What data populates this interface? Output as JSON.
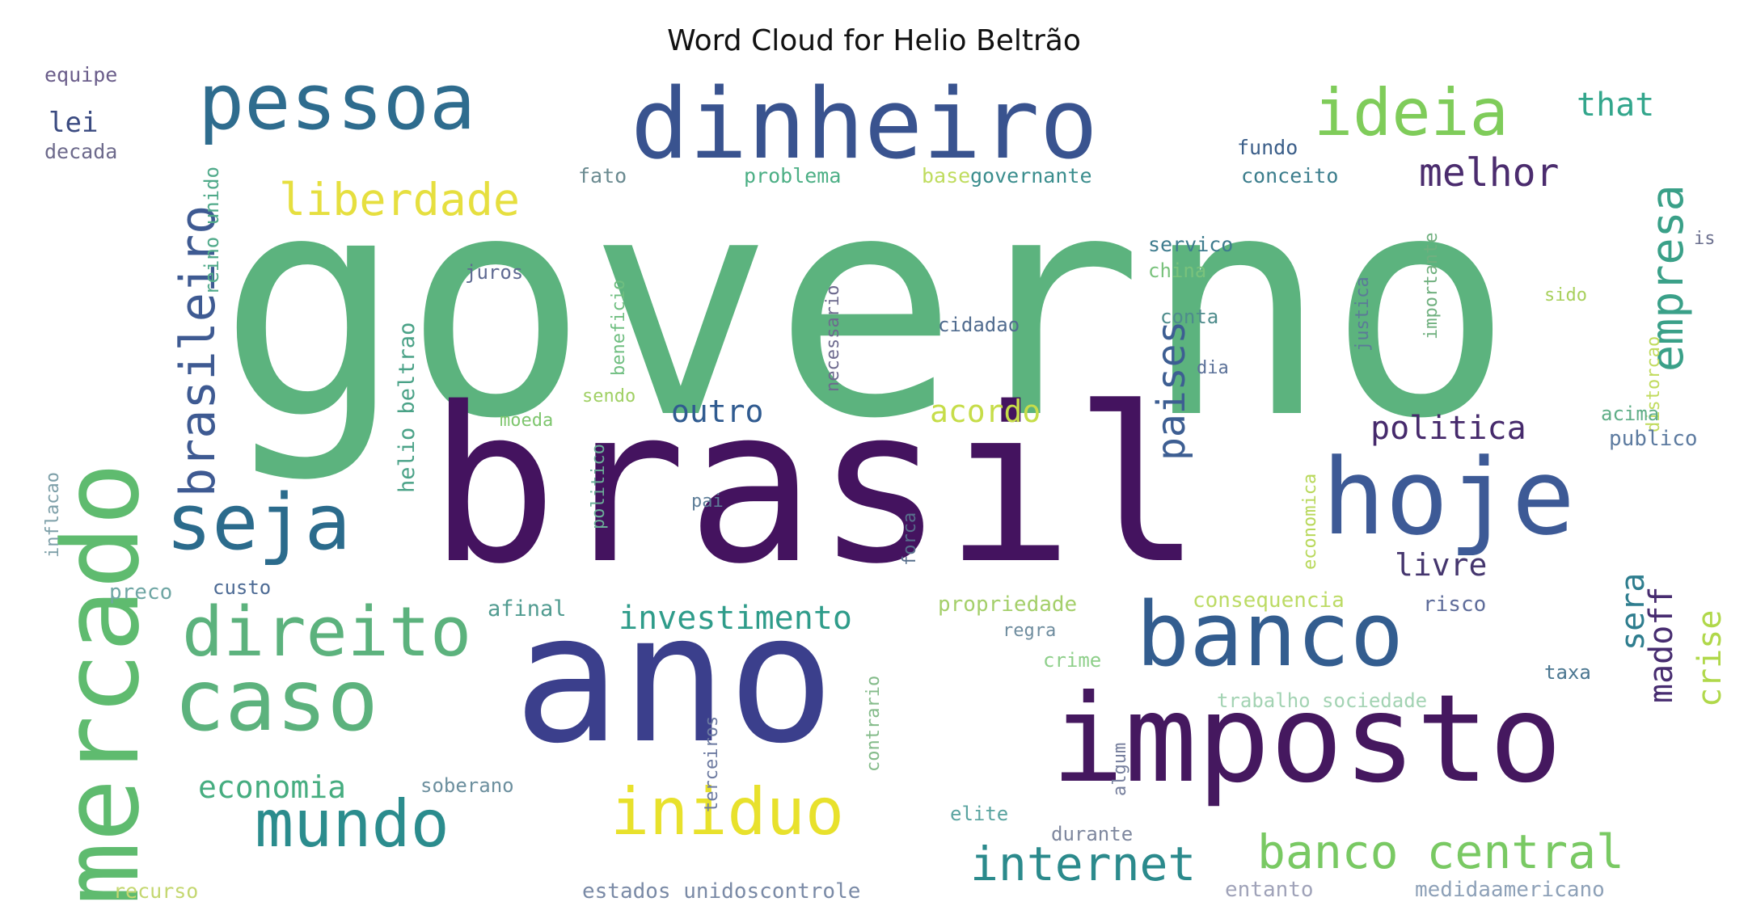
{
  "title": "Word Cloud for Helio Beltrão",
  "colors": [
    "#440154",
    "#482878",
    "#3e4989",
    "#31688e",
    "#26828e",
    "#1f9e89",
    "#35b779",
    "#6ece58",
    "#b5de2b",
    "#fde725"
  ],
  "words": [
    {
      "text": "governo",
      "weight": 100,
      "color": "#5cb37e"
    },
    {
      "text": "brasil",
      "weight": 72,
      "color": "#44135f"
    },
    {
      "text": "ano",
      "weight": 60,
      "color": "#3b3f8c"
    },
    {
      "text": "imposto",
      "weight": 40,
      "color": "#45185f"
    },
    {
      "text": "hoje",
      "weight": 36,
      "color": "#3d5a96"
    },
    {
      "text": "mercado",
      "weight": 36,
      "color": "#5fbb6f"
    },
    {
      "text": "dinheiro",
      "weight": 33,
      "color": "#39538f"
    },
    {
      "text": "banco",
      "weight": 30,
      "color": "#335d8f"
    },
    {
      "text": "caso",
      "weight": 28,
      "color": "#5cb27d"
    },
    {
      "text": "pessoa",
      "weight": 25,
      "color": "#2e6c8e"
    },
    {
      "text": "seja",
      "weight": 25,
      "color": "#2b6b8c"
    },
    {
      "text": "direito",
      "weight": 23,
      "color": "#5cb27d"
    },
    {
      "text": "mundo",
      "weight": 22,
      "color": "#2b8c8d"
    },
    {
      "text": "iniduo",
      "weight": 22,
      "color": "#e8e12c"
    },
    {
      "text": "ideia",
      "weight": 21,
      "color": "#7fcc5a"
    },
    {
      "text": "brasileiro",
      "weight": 16,
      "color": "#3e5a92"
    },
    {
      "text": "liberdade",
      "weight": 14,
      "color": "#e6df3f"
    },
    {
      "text": "empresa",
      "weight": 15,
      "color": "#3aa088"
    },
    {
      "text": "internet",
      "weight": 15,
      "color": "#2b8a8c"
    },
    {
      "text": "banco central",
      "weight": 15,
      "color": "#79c963"
    },
    {
      "text": "melhor",
      "weight": 12,
      "color": "#4b2c6e"
    },
    {
      "text": "paises",
      "weight": 12,
      "color": "#3d5e92"
    },
    {
      "text": "economia",
      "weight": 10,
      "color": "#46ad80"
    },
    {
      "text": "investimento",
      "weight": 10,
      "color": "#2f9c8a"
    },
    {
      "text": "politica",
      "weight": 10,
      "color": "#462a6c"
    },
    {
      "text": "outro",
      "weight": 9,
      "color": "#305b90"
    },
    {
      "text": "acordo",
      "weight": 9,
      "color": "#c6dd49"
    },
    {
      "text": "livre",
      "weight": 9,
      "color": "#45366e"
    },
    {
      "text": "sera",
      "weight": 9,
      "color": "#2e7d8e"
    },
    {
      "text": "madoff",
      "weight": 9,
      "color": "#472c70"
    },
    {
      "text": "crise",
      "weight": 9,
      "color": "#b0d84a"
    },
    {
      "text": "that",
      "weight": 9,
      "color": "#33a68c"
    },
    {
      "text": "lei",
      "weight": 8,
      "color": "#3a4a80"
    },
    {
      "text": "helio beltrao",
      "weight": 7,
      "color": "#4aa287"
    },
    {
      "text": "reino unido",
      "weight": 6,
      "color": "#50aa8a"
    },
    {
      "text": "fundo",
      "weight": 6,
      "color": "#3b5e89"
    },
    {
      "text": "conceito",
      "weight": 6,
      "color": "#3b7d8c"
    },
    {
      "text": "governante",
      "weight": 6,
      "color": "#3a8d8d"
    },
    {
      "text": "problema",
      "weight": 6,
      "color": "#4caf85"
    },
    {
      "text": "base",
      "weight": 6,
      "color": "#bfdc5e"
    },
    {
      "text": "fato",
      "weight": 6,
      "color": "#6a8a90"
    },
    {
      "text": "decada",
      "weight": 6,
      "color": "#6d6a8c"
    },
    {
      "text": "equipe",
      "weight": 6,
      "color": "#6a5d8a"
    },
    {
      "text": "servico",
      "weight": 6,
      "color": "#3e7c8e"
    },
    {
      "text": "china",
      "weight": 5,
      "color": "#79c27c"
    },
    {
      "text": "juros",
      "weight": 5,
      "color": "#5f6a92"
    },
    {
      "text": "beneficio",
      "weight": 5,
      "color": "#6fbe80"
    },
    {
      "text": "necessario",
      "weight": 5,
      "color": "#6d6a8e"
    },
    {
      "text": "justica",
      "weight": 5,
      "color": "#5b7a98"
    },
    {
      "text": "importante",
      "weight": 5,
      "color": "#70b07f"
    },
    {
      "text": "distorcao",
      "weight": 5,
      "color": "#c1db5e"
    },
    {
      "text": "cidadao",
      "weight": 5,
      "color": "#516c8f"
    },
    {
      "text": "conta",
      "weight": 5,
      "color": "#4e8c8c"
    },
    {
      "text": "sido",
      "weight": 5,
      "color": "#a8d05c"
    },
    {
      "text": "dia",
      "weight": 5,
      "color": "#5b7198"
    },
    {
      "text": "sendo",
      "weight": 6,
      "color": "#a0d064"
    },
    {
      "text": "moeda",
      "weight": 6,
      "color": "#7ec66e"
    },
    {
      "text": "publico",
      "weight": 6,
      "color": "#5d7ba0"
    },
    {
      "text": "acima",
      "weight": 6,
      "color": "#5fae87"
    },
    {
      "text": "economica",
      "weight": 5,
      "color": "#b8d85a"
    },
    {
      "text": "pai",
      "weight": 5,
      "color": "#5e7e98"
    },
    {
      "text": "forca",
      "weight": 5,
      "color": "#586f8c"
    },
    {
      "text": "politico",
      "weight": 5,
      "color": "#6cae98"
    },
    {
      "text": "custo",
      "weight": 6,
      "color": "#4c6a94"
    },
    {
      "text": "preco",
      "weight": 6,
      "color": "#6fa6a4"
    },
    {
      "text": "afinal",
      "weight": 6,
      "color": "#529c91"
    },
    {
      "text": "propriedade",
      "weight": 6,
      "color": "#a4cf6a"
    },
    {
      "text": "regra",
      "weight": 5,
      "color": "#6e8c9e"
    },
    {
      "text": "consequencia",
      "weight": 6,
      "color": "#bcdb65"
    },
    {
      "text": "risco",
      "weight": 6,
      "color": "#5e6c9a"
    },
    {
      "text": "taxa",
      "weight": 5,
      "color": "#4a7690"
    },
    {
      "text": "crime",
      "weight": 5,
      "color": "#8ecf8a"
    },
    {
      "text": "trabalho sociedade",
      "weight": 6,
      "color": "#a3d3b3"
    },
    {
      "text": "contrario",
      "weight": 5,
      "color": "#84bb8a"
    },
    {
      "text": "terceiros",
      "weight": 5,
      "color": "#6c7aa0"
    },
    {
      "text": "algum",
      "weight": 5,
      "color": "#757e9c"
    },
    {
      "text": "soberano",
      "weight": 5,
      "color": "#6c8f9e"
    },
    {
      "text": "elite",
      "weight": 5,
      "color": "#5aa4a0"
    },
    {
      "text": "durante",
      "weight": 5,
      "color": "#7e879e"
    },
    {
      "text": "recurso",
      "weight": 6,
      "color": "#c4d770"
    },
    {
      "text": "estados unidoscontrole",
      "weight": 6,
      "color": "#7a8aa6"
    },
    {
      "text": "entanto",
      "weight": 6,
      "color": "#a0a3b9"
    },
    {
      "text": "medidaamericano",
      "weight": 6,
      "color": "#8ea1b8"
    },
    {
      "text": "inflacao",
      "weight": 5,
      "color": "#7d9fa8"
    },
    {
      "text": "is",
      "weight": 5,
      "color": "#6b6f8e"
    }
  ]
}
